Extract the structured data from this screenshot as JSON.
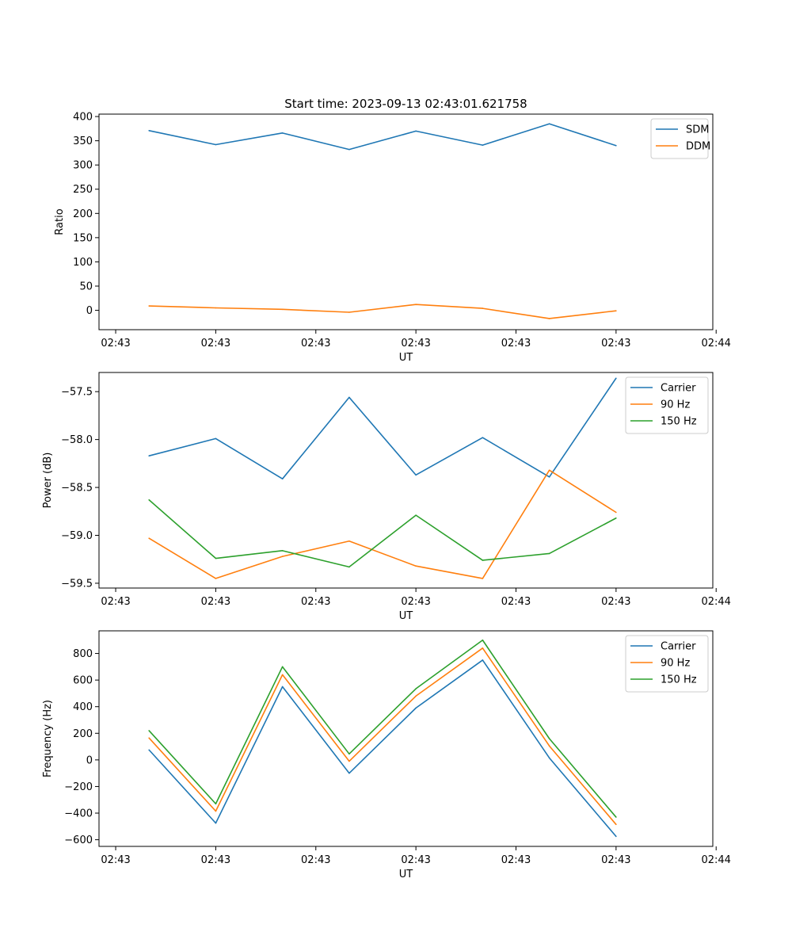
{
  "figure_title": "Start time: 2023-09-13 02:43:01.621758",
  "colors": {
    "blue": "#1f77b4",
    "orange": "#ff7f0e",
    "green": "#2ca02c",
    "axis": "#000000",
    "legend_border": "#cccccc"
  },
  "chart_data": [
    {
      "type": "line",
      "title": "Start time: 2023-09-13 02:43:01.621758",
      "xlabel": "UT",
      "ylabel": "Ratio",
      "x": [
        1,
        2,
        3,
        4,
        5,
        6,
        7,
        8
      ],
      "xlim": [
        0.25,
        9.45
      ],
      "x_ticks": [
        0.5,
        2,
        3.5,
        5,
        6.5,
        8,
        9.5
      ],
      "x_tick_labels": [
        "02:43",
        "02:43",
        "02:43",
        "02:43",
        "02:43",
        "02:43",
        "02:44"
      ],
      "ylim": [
        -40,
        405
      ],
      "y_ticks": [
        0,
        50,
        100,
        150,
        200,
        250,
        300,
        350,
        400
      ],
      "y_tick_labels": [
        "0",
        "50",
        "100",
        "150",
        "200",
        "250",
        "300",
        "350",
        "400"
      ],
      "legend": "upper-right",
      "grid": false,
      "series": [
        {
          "name": "SDM",
          "color": "#1f77b4",
          "values": [
            371,
            342,
            366,
            332,
            370,
            341,
            385,
            340
          ]
        },
        {
          "name": "DDM",
          "color": "#ff7f0e",
          "values": [
            9,
            5,
            2,
            -4,
            12,
            4,
            -17,
            -1
          ]
        }
      ]
    },
    {
      "type": "line",
      "title": "",
      "xlabel": "UT",
      "ylabel": "Power (dB)",
      "x": [
        1,
        2,
        3,
        4,
        5,
        6,
        7,
        8
      ],
      "xlim": [
        0.25,
        9.45
      ],
      "x_ticks": [
        0.5,
        2,
        3.5,
        5,
        6.5,
        8,
        9.5
      ],
      "x_tick_labels": [
        "02:43",
        "02:43",
        "02:43",
        "02:43",
        "02:43",
        "02:43",
        "02:44"
      ],
      "ylim": [
        -59.55,
        -57.3
      ],
      "y_ticks": [
        -57.5,
        -58.0,
        -58.5,
        -59.0,
        -59.5
      ],
      "y_tick_labels": [
        "−57.5",
        "−58.0",
        "−58.5",
        "−59.0",
        "−59.5"
      ],
      "legend": "upper-right",
      "grid": false,
      "series": [
        {
          "name": "Carrier",
          "color": "#1f77b4",
          "values": [
            -58.17,
            -57.99,
            -58.41,
            -57.56,
            -58.37,
            -57.98,
            -58.39,
            -57.36
          ]
        },
        {
          "name": "90 Hz",
          "color": "#ff7f0e",
          "values": [
            -59.03,
            -59.45,
            -59.22,
            -59.06,
            -59.32,
            -59.45,
            -58.32,
            -58.76
          ]
        },
        {
          "name": "150 Hz",
          "color": "#2ca02c",
          "values": [
            -58.63,
            -59.24,
            -59.16,
            -59.33,
            -58.79,
            -59.26,
            -59.19,
            -58.82
          ]
        }
      ]
    },
    {
      "type": "line",
      "title": "",
      "xlabel": "UT",
      "ylabel": "Frequency (Hz)",
      "x": [
        1,
        2,
        3,
        4,
        5,
        6,
        7,
        8
      ],
      "xlim": [
        0.25,
        9.45
      ],
      "x_ticks": [
        0.5,
        2,
        3.5,
        5,
        6.5,
        8,
        9.5
      ],
      "x_tick_labels": [
        "02:43",
        "02:43",
        "02:43",
        "02:43",
        "02:43",
        "02:43",
        "02:44"
      ],
      "ylim": [
        -650,
        970
      ],
      "y_ticks": [
        800,
        600,
        400,
        200,
        0,
        -200,
        -400,
        -600
      ],
      "y_tick_labels": [
        "800",
        "600",
        "400",
        "200",
        "0",
        "−200",
        "−400",
        "−600"
      ],
      "legend": "upper-right",
      "grid": false,
      "series": [
        {
          "name": "Carrier",
          "color": "#1f77b4",
          "values": [
            75,
            -475,
            550,
            -100,
            390,
            750,
            15,
            -575
          ]
        },
        {
          "name": "90 Hz",
          "color": "#ff7f0e",
          "values": [
            165,
            -385,
            640,
            -10,
            480,
            840,
            105,
            -485
          ]
        },
        {
          "name": "150 Hz",
          "color": "#2ca02c",
          "values": [
            220,
            -330,
            700,
            45,
            535,
            900,
            160,
            -430
          ]
        }
      ]
    }
  ]
}
